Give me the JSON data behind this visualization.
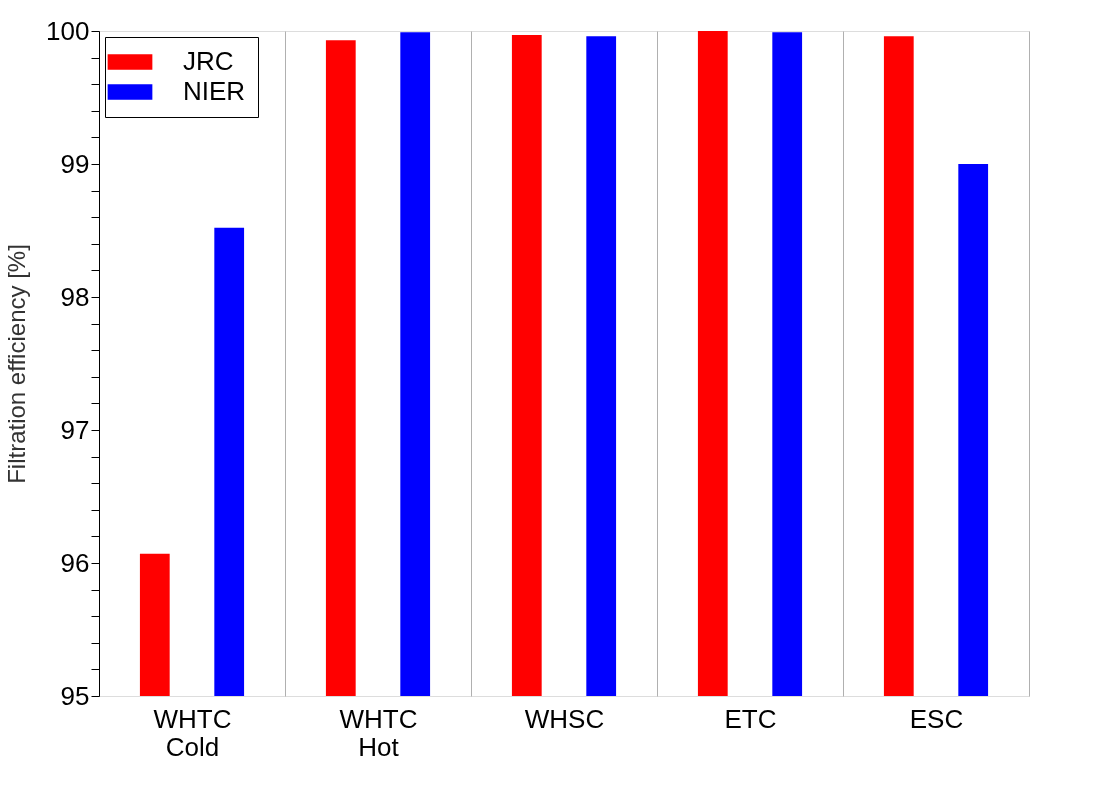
{
  "chart_data": {
    "type": "bar",
    "ylabel": "Filtration efficiency [%]",
    "categories": [
      "WHTC\nCold",
      "WHTC\nHot",
      "WHSC",
      "ETC",
      "ESC"
    ],
    "series": [
      {
        "name": "JRC",
        "color": "#ff0000",
        "values": [
          96.07,
          99.93,
          99.97,
          100.0,
          99.96
        ]
      },
      {
        "name": "NIER",
        "color": "#0000ff",
        "values": [
          98.52,
          99.99,
          99.96,
          99.99,
          99.0
        ]
      }
    ],
    "ylim": [
      95,
      100
    ],
    "yticks": [
      95,
      {
        "value": 95.2,
        "label": null
      },
      {
        "value": 95.4,
        "label": null
      },
      {
        "value": 95.6,
        "label": null
      },
      {
        "value": 95.8,
        "label": null
      },
      96,
      {
        "value": 96.2,
        "label": null
      },
      {
        "value": 96.4,
        "label": null
      },
      {
        "value": 96.6,
        "label": null
      },
      {
        "value": 96.8,
        "label": null
      },
      97,
      {
        "value": 97.2,
        "label": null
      },
      {
        "value": 97.4,
        "label": null
      },
      {
        "value": 97.6,
        "label": null
      },
      {
        "value": 97.8,
        "label": null
      },
      98,
      {
        "value": 98.2,
        "label": null
      },
      {
        "value": 98.4,
        "label": null
      },
      {
        "value": 98.6,
        "label": null
      },
      {
        "value": 98.8,
        "label": null
      },
      99,
      {
        "value": 99.2,
        "label": null
      },
      {
        "value": 99.4,
        "label": null
      },
      {
        "value": 99.6,
        "label": null
      },
      {
        "value": 99.8,
        "label": null
      },
      100
    ],
    "grid": "x",
    "legend": "top left"
  }
}
